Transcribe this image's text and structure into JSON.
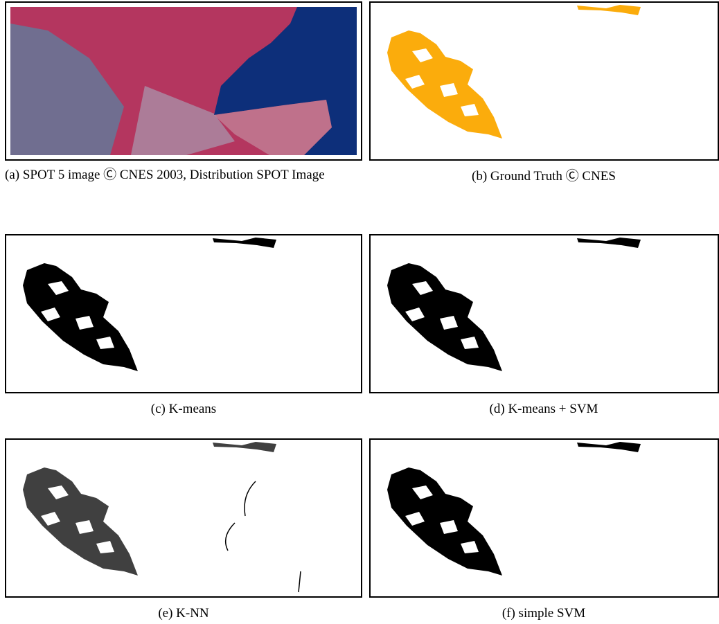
{
  "panels": [
    {
      "caption": "(a) SPOT 5 image Ⓒ CNES 2003, Distribution SPOT Image"
    },
    {
      "caption": "(b) Ground Truth Ⓒ CNES"
    },
    {
      "caption": "(c) K-means"
    },
    {
      "caption": "(d) K-means + SVM"
    },
    {
      "caption": "(e) K-NN"
    },
    {
      "caption": "(f) simple SVM"
    }
  ]
}
